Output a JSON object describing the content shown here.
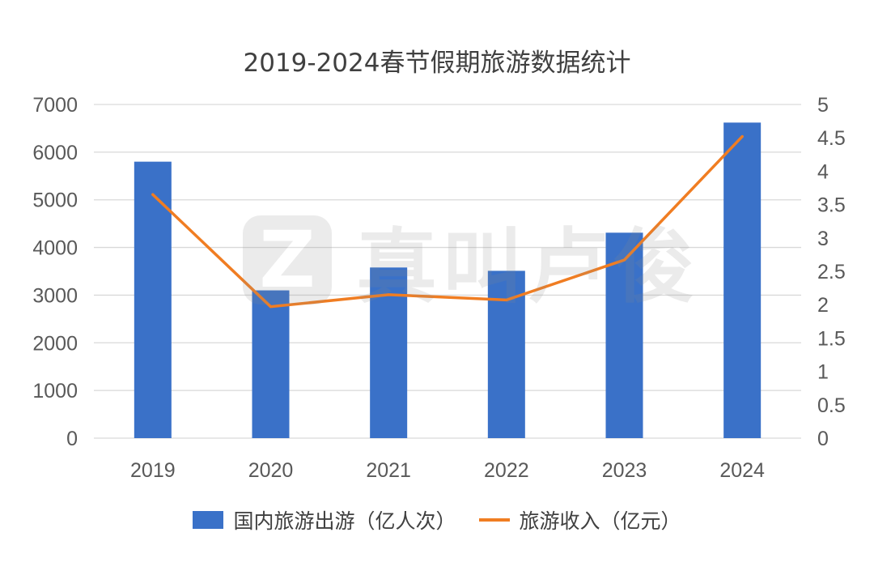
{
  "chart_data": {
    "type": "bar",
    "title": "2019-2024春节假期旅游数据统计",
    "categories": [
      "2019",
      "2020",
      "2021",
      "2022",
      "2023",
      "2024"
    ],
    "series": [
      {
        "name": "国内旅游出游（亿人次）",
        "type": "bar",
        "axis": "left",
        "values": [
          5800,
          3100,
          3580,
          3510,
          4310,
          6620
        ]
      },
      {
        "name": "旅游收入（亿元）",
        "type": "line",
        "axis": "right",
        "values": [
          3.65,
          1.97,
          2.15,
          2.07,
          2.67,
          4.52
        ]
      }
    ],
    "ylim": [
      0,
      7000
    ],
    "yticks": [
      "0",
      "1000",
      "2000",
      "3000",
      "4000",
      "5000",
      "6000",
      "7000"
    ],
    "y2lim": [
      0,
      5
    ],
    "y2ticks": [
      "0",
      "0.5",
      "1",
      "1.5",
      "2",
      "2.5",
      "3",
      "3.5",
      "4",
      "4.5",
      "5"
    ],
    "xlabel": "",
    "ylabel": "",
    "legend": "bottom",
    "grid": true
  },
  "colors": {
    "bar": "#3a71c8",
    "line": "#f07d22",
    "grid": "#d9d9d9",
    "text": "#595959"
  },
  "watermark": {
    "logo_letter": "Z",
    "text": "真叫卢俊"
  }
}
